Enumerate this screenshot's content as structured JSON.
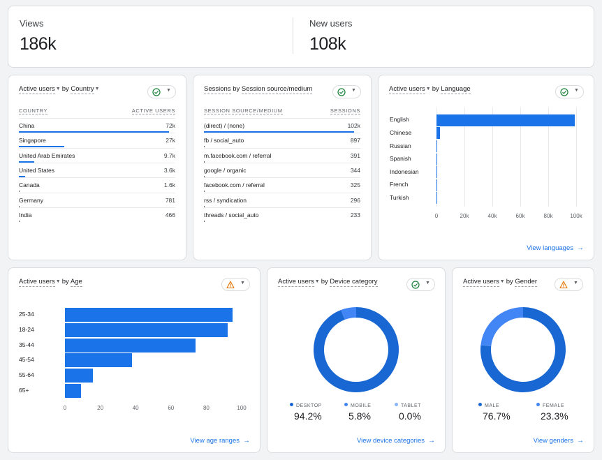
{
  "kpis": [
    {
      "label": "Views",
      "value": "186k"
    },
    {
      "label": "New users",
      "value": "108k"
    }
  ],
  "country_card": {
    "title_metric": "Active users",
    "title_by": "by",
    "title_dim": "Country",
    "status": "check",
    "col_dim": "COUNTRY",
    "col_metric": "ACTIVE USERS",
    "rows": [
      {
        "label": "China",
        "value": "72k",
        "fraction": 1.0
      },
      {
        "label": "Singapore",
        "value": "27k",
        "fraction": 0.3
      },
      {
        "label": "United Arab Emirates",
        "value": "9.7k",
        "fraction": 0.1
      },
      {
        "label": "United States",
        "value": "3.6k",
        "fraction": 0.04
      },
      {
        "label": "Canada",
        "value": "1.6k",
        "fraction": 0.0
      },
      {
        "label": "Germany",
        "value": "781",
        "fraction": 0.0
      },
      {
        "label": "India",
        "value": "466",
        "fraction": 0.0
      }
    ]
  },
  "source_card": {
    "title_metric": "Sessions",
    "title_by": "by",
    "title_dim": "Session source/medium",
    "status": "check",
    "col_dim": "SESSION SOURCE/MEDIUM",
    "col_metric": "SESSIONS",
    "rows": [
      {
        "label": "(direct) / (none)",
        "value": "102k",
        "fraction": 1.0
      },
      {
        "label": "fb / social_auto",
        "value": "897",
        "fraction": 0.0
      },
      {
        "label": "m.facebook.com / referral",
        "value": "391",
        "fraction": 0.0
      },
      {
        "label": "google / organic",
        "value": "344",
        "fraction": 0.0
      },
      {
        "label": "facebook.com / referral",
        "value": "325",
        "fraction": 0.0
      },
      {
        "label": "rss / syndication",
        "value": "296",
        "fraction": 0.0
      },
      {
        "label": "threads / social_auto",
        "value": "233",
        "fraction": 0.0
      }
    ]
  },
  "language_card": {
    "title_metric": "Active users",
    "title_by": "by",
    "title_dim": "Language",
    "status": "check",
    "link": "View languages",
    "chart_data": {
      "type": "bar",
      "orientation": "horizontal",
      "categories": [
        "English",
        "Chinese",
        "Russian",
        "Spanish",
        "Indonesian",
        "French",
        "Turkish"
      ],
      "values": [
        99000,
        2500,
        300,
        200,
        150,
        100,
        80
      ],
      "xlim": [
        0,
        100000
      ],
      "xticks": [
        "0",
        "20k",
        "40k",
        "60k",
        "80k",
        "100k"
      ],
      "grid": true,
      "color": "#1a73e8"
    }
  },
  "age_card": {
    "title_metric": "Active users",
    "title_by": "by",
    "title_dim": "Age",
    "status": "warning",
    "link": "View age ranges",
    "chart_data": {
      "type": "bar",
      "orientation": "horizontal",
      "categories": [
        "25-34",
        "18-24",
        "35-44",
        "45-54",
        "55-64",
        "65+"
      ],
      "values": [
        95,
        92,
        74,
        38,
        16,
        9
      ],
      "xlim": [
        0,
        100
      ],
      "xticks": [
        "0",
        "20",
        "40",
        "60",
        "80",
        "100"
      ],
      "grid": false,
      "color": "#1a73e8"
    }
  },
  "device_card": {
    "title_metric": "Active users",
    "title_by": "by",
    "title_dim": "Device category",
    "status": "check",
    "link": "View device categories",
    "chart_data": {
      "type": "pie",
      "donut": true,
      "slices": [
        {
          "label": "DESKTOP",
          "value": 94.2,
          "display": "94.2%",
          "color": "#1967d2"
        },
        {
          "label": "MOBILE",
          "value": 5.8,
          "display": "5.8%",
          "color": "#4285f4"
        },
        {
          "label": "TABLET",
          "value": 0.0,
          "display": "0.0%",
          "color": "#8ab4f8"
        }
      ]
    }
  },
  "gender_card": {
    "title_metric": "Active users",
    "title_by": "by",
    "title_dim": "Gender",
    "status": "warning",
    "link": "View genders",
    "chart_data": {
      "type": "pie",
      "donut": true,
      "slices": [
        {
          "label": "MALE",
          "value": 76.7,
          "display": "76.7%",
          "color": "#1967d2"
        },
        {
          "label": "FEMALE",
          "value": 23.3,
          "display": "23.3%",
          "color": "#4285f4"
        }
      ]
    }
  }
}
